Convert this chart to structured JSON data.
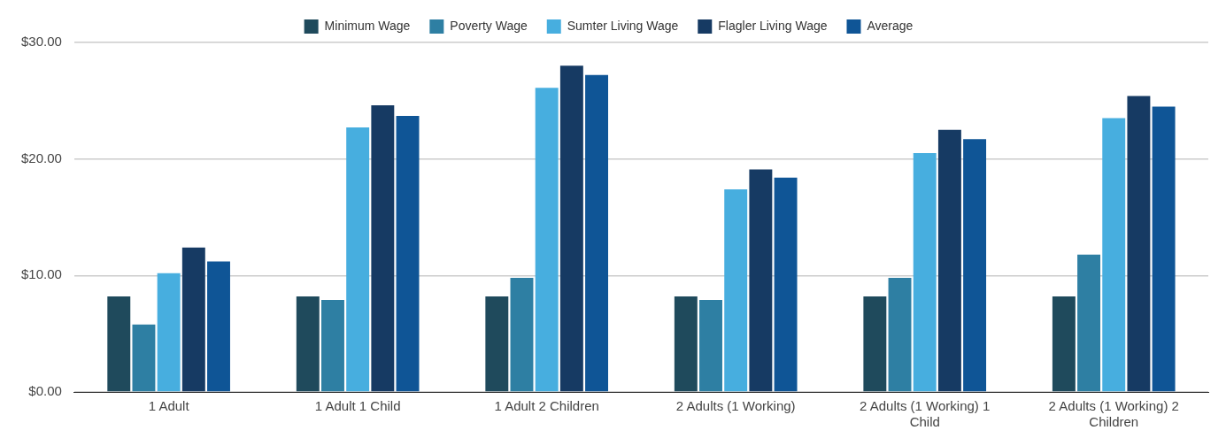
{
  "chart_data": {
    "type": "bar",
    "categories": [
      "1 Adult",
      "1 Adult 1 Child",
      "1 Adult 2 Children",
      "2 Adults (1 Working)",
      "2 Adults (1 Working) 1 Child",
      "2 Adults (1 Working) 2 Children"
    ],
    "series": [
      {
        "name": "Minimum Wage",
        "color": "#1f4a5c",
        "values": [
          8.2,
          8.2,
          8.2,
          8.2,
          8.2,
          8.2
        ]
      },
      {
        "name": "Poverty Wage",
        "color": "#2e7fa3",
        "values": [
          5.8,
          7.9,
          9.8,
          7.9,
          9.8,
          11.8
        ]
      },
      {
        "name": "Sumter Living Wage",
        "color": "#47aedf",
        "values": [
          10.2,
          22.7,
          26.1,
          17.4,
          20.5,
          23.5
        ]
      },
      {
        "name": "Flagler Living Wage",
        "color": "#163a63",
        "values": [
          12.4,
          24.6,
          28.0,
          19.1,
          22.5,
          25.4
        ]
      },
      {
        "name": "Average",
        "color": "#0f5596",
        "values": [
          11.2,
          23.7,
          27.2,
          18.4,
          21.7,
          24.5
        ]
      }
    ],
    "ylim": [
      0,
      30
    ],
    "yticks": [
      {
        "value": 0,
        "label": "$0.00"
      },
      {
        "value": 10,
        "label": "$10.00"
      },
      {
        "value": 20,
        "label": "$20.00"
      },
      {
        "value": 30,
        "label": "$30.00"
      }
    ],
    "grid": "y",
    "legend": "top"
  }
}
